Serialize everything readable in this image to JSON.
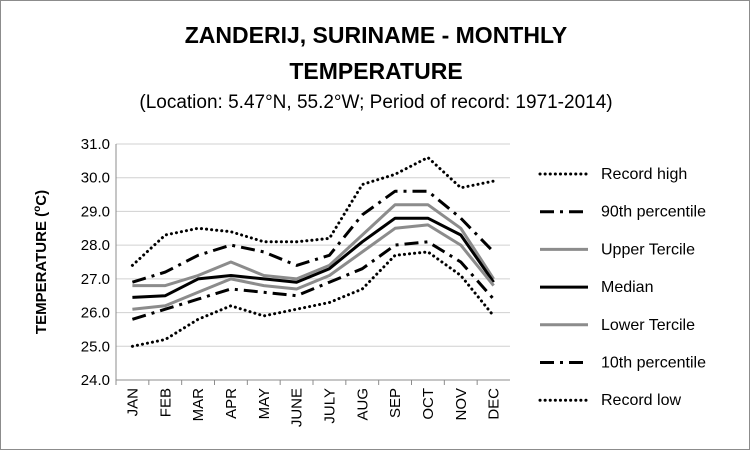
{
  "chart_data": {
    "type": "line",
    "title_line1": "ZANDERIJ, SURINAME - MONTHLY",
    "title_line2": "TEMPERATURE",
    "subtitle": "(Location: 5.47°N, 55.2°W; Period of record: 1971-2014)",
    "xlabel": "",
    "ylabel": "TEMPERATURE (°C)",
    "ylabel_main": "TEMPERATURE (",
    "ylabel_sup": "o",
    "ylabel_end": "C)",
    "ylim": [
      24.0,
      31.0
    ],
    "yticks": [
      "24.0",
      "25.0",
      "26.0",
      "27.0",
      "28.0",
      "29.0",
      "30.0",
      "31.0"
    ],
    "grid": true,
    "legend_position": "right",
    "categories": [
      "JAN",
      "FEB",
      "MAR",
      "APR",
      "MAY",
      "JUNE",
      "JULY",
      "AUG",
      "SEP",
      "OCT",
      "NOV",
      "DEC"
    ],
    "series": [
      {
        "name": "Record high",
        "style": "dotted",
        "color": "#000000",
        "values": [
          27.4,
          28.3,
          28.5,
          28.4,
          28.1,
          28.1,
          28.2,
          29.8,
          30.1,
          30.6,
          29.7,
          29.9
        ]
      },
      {
        "name": "90th percentile",
        "style": "dashdot",
        "color": "#000000",
        "values": [
          26.9,
          27.2,
          27.7,
          28.0,
          27.8,
          27.4,
          27.7,
          28.9,
          29.6,
          29.6,
          28.8,
          27.8
        ]
      },
      {
        "name": "Upper Tercile",
        "style": "solid",
        "color": "#8c8c8c",
        "values": [
          26.8,
          26.8,
          27.1,
          27.5,
          27.1,
          27.0,
          27.4,
          28.3,
          29.2,
          29.2,
          28.5,
          27.0
        ]
      },
      {
        "name": "Median",
        "style": "solid",
        "color": "#000000",
        "values": [
          26.45,
          26.5,
          27.0,
          27.1,
          27.0,
          26.9,
          27.3,
          28.1,
          28.8,
          28.8,
          28.3,
          26.9
        ]
      },
      {
        "name": "Lower Tercile",
        "style": "solid",
        "color": "#8c8c8c",
        "values": [
          26.1,
          26.2,
          26.6,
          27.0,
          26.8,
          26.7,
          27.1,
          27.8,
          28.5,
          28.6,
          28.0,
          26.8
        ]
      },
      {
        "name": "10th percentile",
        "style": "dashdot",
        "color": "#000000",
        "values": [
          25.8,
          26.1,
          26.4,
          26.7,
          26.6,
          26.5,
          26.9,
          27.3,
          28.0,
          28.1,
          27.5,
          26.4
        ]
      },
      {
        "name": "Record low",
        "style": "dotted",
        "color": "#000000",
        "values": [
          25.0,
          25.2,
          25.8,
          26.2,
          25.9,
          26.1,
          26.3,
          26.7,
          27.7,
          27.8,
          27.1,
          25.9
        ]
      }
    ]
  }
}
